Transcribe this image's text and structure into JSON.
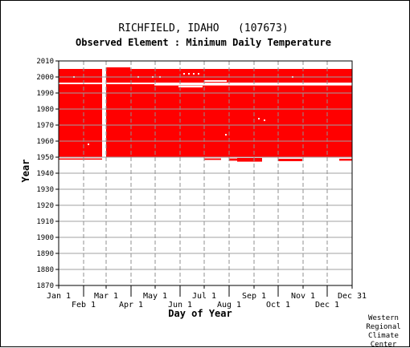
{
  "chart_data": {
    "type": "bar",
    "title": "RICHFIELD, IDAHO   (107673)",
    "subtitle": "Observed Element : Minimum Daily Temperature",
    "xlabel": "Day of Year",
    "ylabel": "Year",
    "xlim": [
      1,
      366
    ],
    "ylim": [
      1870,
      2010
    ],
    "y_ticks": [
      1870,
      1880,
      1890,
      1900,
      1910,
      1920,
      1930,
      1940,
      1950,
      1960,
      1970,
      1980,
      1990,
      2000,
      2010
    ],
    "x_ticks": [
      {
        "label": "Jan 1",
        "day": 1,
        "row": 0
      },
      {
        "label": "Feb 1",
        "day": 32,
        "row": 1
      },
      {
        "label": "Mar 1",
        "day": 60,
        "row": 0
      },
      {
        "label": "Apr 1",
        "day": 91,
        "row": 1
      },
      {
        "label": "May 1",
        "day": 121,
        "row": 0
      },
      {
        "label": "Jun 1",
        "day": 152,
        "row": 1
      },
      {
        "label": "Jul 1",
        "day": 182,
        "row": 0
      },
      {
        "label": "Aug 1",
        "day": 213,
        "row": 1
      },
      {
        "label": "Sep 1",
        "day": 244,
        "row": 0
      },
      {
        "label": "Oct 1",
        "day": 274,
        "row": 1
      },
      {
        "label": "Nov 1",
        "day": 305,
        "row": 0
      },
      {
        "label": "Dec 1",
        "day": 335,
        "row": 1
      },
      {
        "label": "Dec 31",
        "day": 366,
        "row": 0
      }
    ],
    "grid": true,
    "bar_color": "#ff0000",
    "gap_color": "#ffffff",
    "observed_periods": [
      {
        "name": "main",
        "day_start": 1,
        "day_end": 366,
        "year_start": 1950,
        "year_end": 2005
      },
      {
        "name": "early-jan-feb",
        "day_start": 1,
        "day_end": 55,
        "year_start": 1948.5,
        "year_end": 1949.2
      },
      {
        "name": "mar-end",
        "day_start": 60,
        "day_end": 90,
        "year_start": 2005,
        "year_end": 2006
      },
      {
        "name": "jul-low",
        "day_start": 182,
        "day_end": 203,
        "year_start": 1948.3,
        "year_end": 1949.2
      },
      {
        "name": "aug-low",
        "day_start": 213,
        "day_end": 223,
        "year_start": 1947.8,
        "year_end": 1949.2
      },
      {
        "name": "aug-sep-low",
        "day_start": 223,
        "day_end": 254,
        "year_start": 1947.2,
        "year_end": 1949.5
      },
      {
        "name": "oct-low",
        "day_start": 274,
        "day_end": 304,
        "year_start": 1947.5,
        "year_end": 1949
      },
      {
        "name": "dec-low",
        "day_start": 350,
        "day_end": 366,
        "year_start": 1947.8,
        "year_end": 1949
      }
    ],
    "missing_periods": [
      {
        "day_start": 1,
        "day_end": 366,
        "year": 1996
      },
      {
        "day_start": 120,
        "day_end": 366,
        "year": 1995.2
      },
      {
        "day_start": 150,
        "day_end": 180,
        "year": 1994
      },
      {
        "day_start": 182,
        "day_end": 210,
        "year": 1997.5
      },
      {
        "day_start": 55,
        "day_end": 60,
        "year_start": 1950,
        "year_end": 2005
      }
    ],
    "missing_points": [
      {
        "day": 20,
        "year": 2000
      },
      {
        "day": 38,
        "year": 1958
      },
      {
        "day": 100,
        "year": 2000
      },
      {
        "day": 118,
        "year": 2000
      },
      {
        "day": 127,
        "year": 2000
      },
      {
        "day": 157,
        "year": 2002
      },
      {
        "day": 163,
        "year": 2002
      },
      {
        "day": 169,
        "year": 2002
      },
      {
        "day": 175,
        "year": 2002
      },
      {
        "day": 209,
        "year": 1964
      },
      {
        "day": 250,
        "year": 1974
      },
      {
        "day": 257,
        "year": 1973
      },
      {
        "day": 292,
        "year": 2000
      }
    ]
  },
  "credit": [
    "Western",
    "Regional",
    "Climate",
    "Center"
  ]
}
